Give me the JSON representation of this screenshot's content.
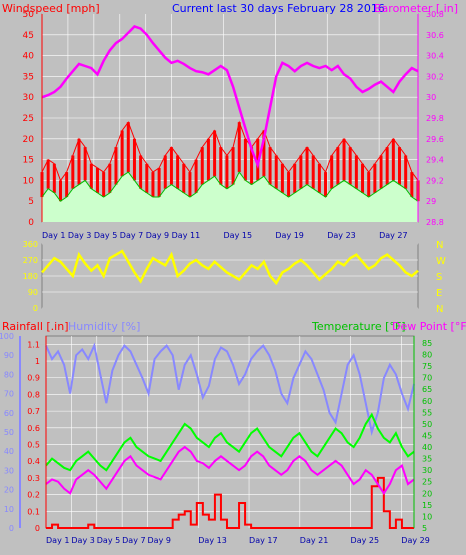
{
  "header": {
    "wind_label": "Windspeed [mph]",
    "title": "Current last 30 days February 28 2016",
    "baro_label": "Barometer [.in]"
  },
  "colors": {
    "wind": "#ff0000",
    "gust": "#ff0000",
    "wind_avg": "#00c000",
    "wind_fill": "#ccffcc",
    "rain": "#ff0000",
    "humidity": "#8888ff",
    "temperature": "#00ff00",
    "dewpoint": "#ff00ff",
    "barometer": "#ff00ff",
    "direction": "#ffff00",
    "grid": "#ffffff"
  },
  "panel_bottom": {
    "rain_label": "Rainfall [.in]",
    "humidity_label": "Humidity [%]",
    "temp_label": "Temperature [°F]",
    "dew_label": "Dew Point [°F]"
  },
  "chart_data": [
    {
      "type": "line",
      "name": "wind-barometer",
      "y_left": {
        "label": "Windspeed [mph]",
        "ticks": [
          0,
          5,
          10,
          15,
          20,
          25,
          30,
          35,
          40,
          45,
          50
        ],
        "range": [
          0,
          50
        ]
      },
      "y_right": {
        "label": "Barometer [.in]",
        "ticks": [
          "28.8",
          "29",
          "29.2",
          "29.4",
          "29.6",
          "29.8",
          "30",
          "30.2",
          "30.4",
          "30.6",
          "30.8"
        ],
        "range": [
          28.8,
          30.8
        ]
      },
      "x_ticks": [
        "Day 1",
        "Day 3",
        "Day 5",
        "Day 7",
        "Day 9",
        "Day 11",
        "Day 15",
        "Day 19",
        "Day 23",
        "Day 27"
      ],
      "x_tick_days": [
        1,
        3,
        5,
        7,
        9,
        11,
        15,
        19,
        23,
        27
      ],
      "barometer": [
        30.0,
        30.02,
        30.05,
        30.1,
        30.18,
        30.25,
        30.32,
        30.3,
        30.28,
        30.22,
        30.35,
        30.45,
        30.52,
        30.56,
        30.62,
        30.68,
        30.66,
        30.6,
        30.52,
        30.45,
        30.38,
        30.33,
        30.35,
        30.32,
        30.28,
        30.25,
        30.24,
        30.22,
        30.26,
        30.3,
        30.26,
        30.1,
        29.9,
        29.7,
        29.5,
        29.35,
        29.6,
        29.9,
        30.2,
        30.33,
        30.3,
        30.25,
        30.3,
        30.33,
        30.3,
        30.28,
        30.3,
        30.26,
        30.3,
        30.22,
        30.18,
        30.1,
        30.05,
        30.08,
        30.12,
        30.15,
        30.1,
        30.05,
        30.15,
        30.22,
        30.28,
        30.25
      ],
      "wind_avg": [
        6,
        8,
        7,
        5,
        6,
        8,
        9,
        10,
        8,
        7,
        6,
        7,
        9,
        11,
        12,
        10,
        8,
        7,
        6,
        6,
        8,
        9,
        8,
        7,
        6,
        7,
        9,
        10,
        11,
        9,
        8,
        9,
        12,
        10,
        9,
        10,
        11,
        9,
        8,
        7,
        6,
        7,
        8,
        9,
        8,
        7,
        6,
        8,
        9,
        10,
        9,
        8,
        7,
        6,
        7,
        8,
        9,
        10,
        9,
        8,
        6,
        5
      ],
      "wind_gust": [
        12,
        15,
        14,
        10,
        12,
        16,
        20,
        18,
        14,
        13,
        12,
        14,
        18,
        22,
        24,
        20,
        16,
        14,
        12,
        13,
        16,
        18,
        16,
        14,
        12,
        15,
        18,
        20,
        22,
        18,
        16,
        18,
        24,
        20,
        18,
        20,
        22,
        18,
        16,
        14,
        12,
        14,
        16,
        18,
        16,
        14,
        12,
        16,
        18,
        20,
        18,
        16,
        14,
        12,
        14,
        16,
        18,
        20,
        18,
        16,
        12,
        10
      ]
    },
    {
      "type": "line",
      "name": "wind-direction",
      "y_left_ticks": [
        "360",
        "270",
        "180",
        "90",
        "0"
      ],
      "y_right_ticks": [
        "N",
        "W",
        "S",
        "E",
        "N"
      ],
      "range": [
        0,
        360
      ],
      "direction": [
        200,
        240,
        280,
        260,
        220,
        180,
        300,
        250,
        210,
        240,
        180,
        280,
        300,
        320,
        260,
        200,
        150,
        220,
        280,
        260,
        240,
        300,
        180,
        210,
        250,
        270,
        240,
        220,
        260,
        230,
        200,
        180,
        160,
        200,
        240,
        220,
        260,
        180,
        140,
        200,
        220,
        250,
        270,
        240,
        200,
        160,
        190,
        220,
        260,
        240,
        280,
        300,
        260,
        220,
        240,
        280,
        300,
        270,
        240,
        200,
        180,
        210
      ]
    },
    {
      "type": "line",
      "name": "rain-humidity-temp",
      "y_left_outer": {
        "label": "Humidity [%]",
        "ticks": [
          0,
          10,
          20,
          30,
          40,
          50,
          60,
          70,
          80,
          90,
          100
        ],
        "range": [
          0,
          100
        ]
      },
      "y_left_inner": {
        "label": "Rainfall [.in]",
        "ticks": [
          "0",
          "0.1",
          "0.2",
          "0.3",
          "0.4",
          "0.5",
          "0.6",
          "0.7",
          "0.8",
          "0.9",
          "1",
          "1.1"
        ],
        "range": [
          0,
          1.15
        ]
      },
      "y_right": {
        "label": "Temperature [°F]",
        "ticks": [
          5,
          10,
          15,
          20,
          25,
          30,
          35,
          40,
          45,
          50,
          55,
          60,
          65,
          70,
          75,
          80,
          85
        ],
        "range": [
          5,
          88
        ]
      },
      "x_ticks": [
        "Day 1",
        "Day 3",
        "Day 5",
        "Day 7",
        "Day 9",
        "Day 13",
        "Day 17",
        "Day 21",
        "Day 25",
        "Day 29"
      ],
      "x_tick_days": [
        1,
        3,
        5,
        7,
        9,
        13,
        17,
        21,
        25,
        29
      ],
      "humidity": [
        95,
        88,
        92,
        85,
        70,
        90,
        93,
        88,
        95,
        80,
        65,
        82,
        90,
        95,
        92,
        85,
        78,
        70,
        88,
        92,
        95,
        90,
        72,
        85,
        90,
        80,
        68,
        74,
        88,
        94,
        92,
        85,
        75,
        80,
        88,
        92,
        95,
        90,
        82,
        70,
        65,
        78,
        85,
        92,
        88,
        80,
        72,
        60,
        55,
        70,
        85,
        90,
        80,
        65,
        50,
        60,
        78,
        85,
        80,
        70,
        62,
        75
      ],
      "temperature": [
        32,
        35,
        33,
        31,
        30,
        34,
        36,
        38,
        35,
        32,
        30,
        34,
        38,
        42,
        44,
        40,
        38,
        36,
        35,
        34,
        38,
        42,
        46,
        50,
        48,
        44,
        42,
        40,
        44,
        46,
        42,
        40,
        38,
        42,
        46,
        48,
        44,
        40,
        38,
        36,
        40,
        44,
        46,
        42,
        38,
        36,
        40,
        44,
        48,
        46,
        42,
        40,
        44,
        50,
        54,
        48,
        44,
        42,
        46,
        40,
        36,
        38
      ],
      "dewpoint": [
        24,
        26,
        25,
        22,
        20,
        26,
        28,
        30,
        28,
        25,
        22,
        26,
        30,
        34,
        36,
        32,
        30,
        28,
        27,
        26,
        30,
        34,
        38,
        40,
        38,
        34,
        33,
        31,
        34,
        36,
        34,
        32,
        30,
        32,
        36,
        38,
        36,
        32,
        30,
        28,
        30,
        34,
        36,
        34,
        30,
        28,
        30,
        32,
        34,
        32,
        28,
        24,
        26,
        30,
        28,
        24,
        20,
        24,
        30,
        32,
        24,
        26
      ],
      "rainfall": [
        0,
        0.02,
        0,
        0,
        0,
        0,
        0,
        0.02,
        0,
        0,
        0,
        0,
        0,
        0,
        0,
        0,
        0,
        0,
        0,
        0,
        0,
        0.05,
        0.08,
        0.1,
        0.02,
        0.15,
        0.08,
        0.05,
        0.2,
        0.05,
        0,
        0,
        0.15,
        0.02,
        0,
        0,
        0,
        0,
        0,
        0,
        0,
        0,
        0,
        0,
        0,
        0,
        0,
        0,
        0,
        0,
        0,
        0,
        0,
        0,
        0.25,
        0.3,
        0.1,
        0,
        0.05,
        0,
        0,
        0
      ]
    }
  ]
}
